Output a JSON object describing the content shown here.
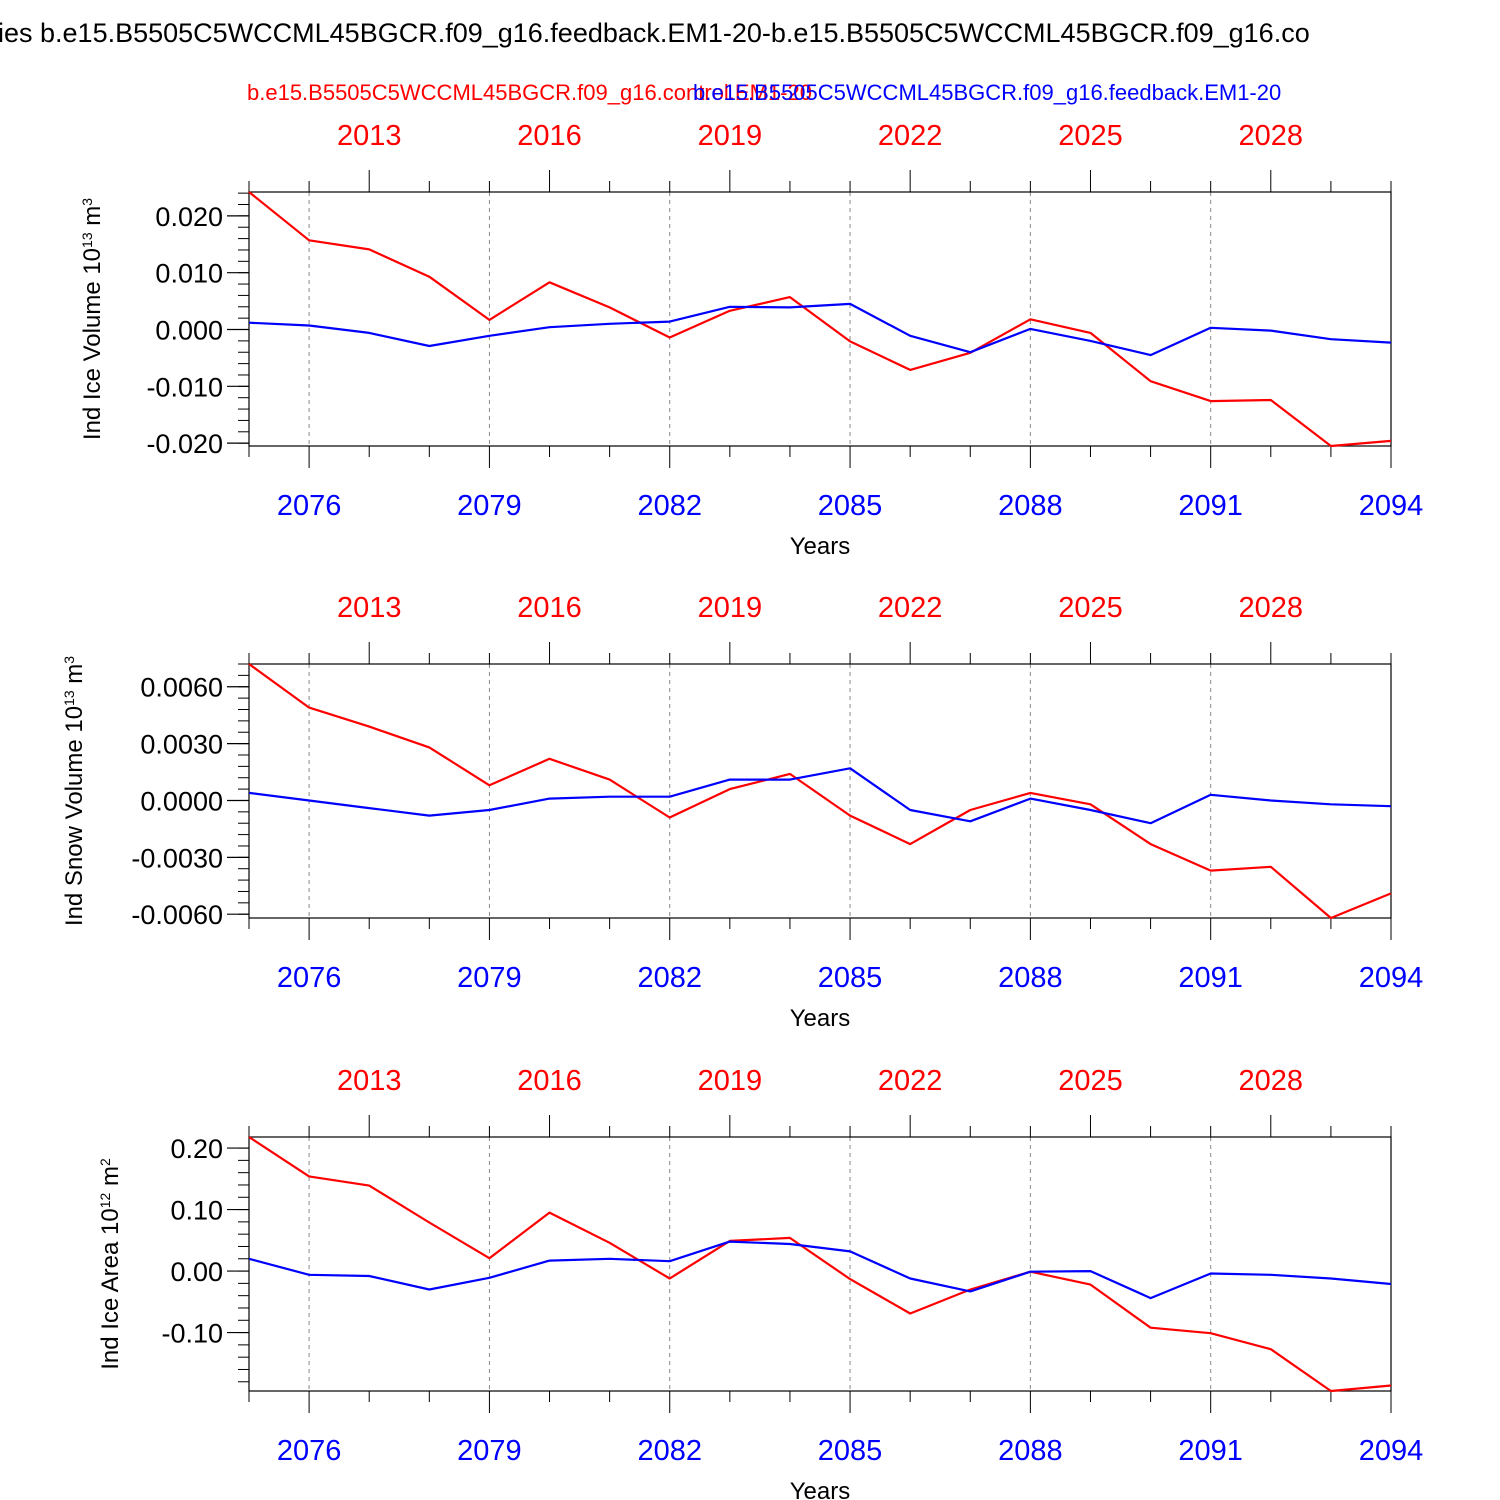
{
  "title": "ies b.e15.B5505C5WCCML45BGCR.f09_g16.feedback.EM1-20-b.e15.B5505C5WCCML45BGCR.f09_g16.co",
  "legend": {
    "red_label": "b.e15.B5505C5WCCML45BGCR.f09_g16.control.EM1-20",
    "blue_label": "b.e15.B5505C5WCCML45BGCR.f09_g16.feedback.EM1-20"
  },
  "colors": {
    "red": "#ff0000",
    "blue": "#0000ff",
    "axis": "#000000",
    "grid": "#888888"
  },
  "chart_data": [
    {
      "type": "line",
      "ylabel_main": "Ind Ice Volume 10",
      "ylabel_exp": "13",
      "ylabel_unit": " m",
      "ylabel_unit_exp": "3",
      "xlabel": "Years",
      "ylim": [
        -0.0205,
        0.0242
      ],
      "yticks": [
        0.02,
        0.01,
        0.0,
        -0.01,
        -0.02
      ],
      "ytick_labels": [
        "0.020",
        "0.010",
        "0.000",
        "-0.010",
        "-0.020"
      ],
      "yminor_step": 0.002,
      "top_ticks": [
        "2013",
        "2016",
        "2019",
        "2022",
        "2025",
        "2028"
      ],
      "bottom_ticks": [
        "2076",
        "2079",
        "2082",
        "2085",
        "2088",
        "2091",
        "2094"
      ],
      "series": [
        {
          "name": "control",
          "color": "red",
          "values": [
            0.0242,
            0.0157,
            0.0141,
            0.0093,
            0.0017,
            0.0083,
            0.0039,
            -0.0014,
            0.0033,
            0.0057,
            -0.0021,
            -0.0071,
            -0.0041,
            0.0018,
            -0.0006,
            -0.0091,
            -0.0126,
            -0.0124,
            -0.0205,
            -0.0196
          ]
        },
        {
          "name": "feedback",
          "color": "blue",
          "values": [
            0.0012,
            0.0007,
            -0.0006,
            -0.0029,
            -0.0011,
            0.0004,
            0.001,
            0.0014,
            0.004,
            0.0039,
            0.0045,
            -0.0011,
            -0.004,
            0.0001,
            -0.002,
            -0.0045,
            0.0003,
            -0.0002,
            -0.0017,
            -0.0023
          ]
        }
      ]
    },
    {
      "type": "line",
      "ylabel_main": "Ind Snow Volume 10",
      "ylabel_exp": "13",
      "ylabel_unit": " m",
      "ylabel_unit_exp": "3",
      "xlabel": "Years",
      "ylim": [
        -0.0062,
        0.0072
      ],
      "yticks": [
        0.006,
        0.003,
        0.0,
        -0.003,
        -0.006
      ],
      "ytick_labels": [
        "0.0060",
        "0.0030",
        "0.0000",
        "-0.0030",
        "-0.0060"
      ],
      "yminor_step": 0.0006,
      "top_ticks": [
        "2013",
        "2016",
        "2019",
        "2022",
        "2025",
        "2028"
      ],
      "bottom_ticks": [
        "2076",
        "2079",
        "2082",
        "2085",
        "2088",
        "2091",
        "2094"
      ],
      "series": [
        {
          "name": "control",
          "color": "red",
          "values": [
            0.0072,
            0.0049,
            0.0039,
            0.0028,
            0.0008,
            0.0022,
            0.0011,
            -0.0009,
            0.0006,
            0.0014,
            -0.0008,
            -0.0023,
            -0.0005,
            0.0004,
            -0.0002,
            -0.0023,
            -0.0037,
            -0.0035,
            -0.0062,
            -0.0049
          ]
        },
        {
          "name": "feedback",
          "color": "blue",
          "values": [
            0.0004,
            0.0,
            -0.0004,
            -0.0008,
            -0.0005,
            0.0001,
            0.0002,
            0.0002,
            0.0011,
            0.0011,
            0.0017,
            -0.0005,
            -0.0011,
            0.0001,
            -0.0005,
            -0.0012,
            0.0003,
            -0.0,
            -0.0002,
            -0.0003
          ]
        }
      ]
    },
    {
      "type": "line",
      "ylabel_main": "Ind Ice Area 10",
      "ylabel_exp": "12",
      "ylabel_unit": " m",
      "ylabel_unit_exp": "2",
      "xlabel": "Years",
      "ylim": [
        -0.195,
        0.218
      ],
      "yticks": [
        0.2,
        0.1,
        0.0,
        -0.1
      ],
      "ytick_labels": [
        "0.20",
        "0.10",
        "0.00",
        "-0.10"
      ],
      "yminor_step": 0.02,
      "top_ticks": [
        "2013",
        "2016",
        "2019",
        "2022",
        "2025",
        "2028"
      ],
      "bottom_ticks": [
        "2076",
        "2079",
        "2082",
        "2085",
        "2088",
        "2091",
        "2094"
      ],
      "series": [
        {
          "name": "control",
          "color": "red",
          "values": [
            0.218,
            0.154,
            0.139,
            0.079,
            0.021,
            0.095,
            0.046,
            -0.012,
            0.049,
            0.054,
            -0.013,
            -0.069,
            -0.03,
            -0.001,
            -0.022,
            -0.092,
            -0.101,
            -0.127,
            -0.195,
            -0.186
          ]
        },
        {
          "name": "feedback",
          "color": "blue",
          "values": [
            0.02,
            -0.006,
            -0.008,
            -0.03,
            -0.011,
            0.017,
            0.02,
            0.016,
            0.048,
            0.044,
            0.032,
            -0.012,
            -0.033,
            -0.001,
            0.0,
            -0.044,
            -0.004,
            -0.006,
            -0.012,
            -0.021
          ]
        }
      ]
    }
  ]
}
